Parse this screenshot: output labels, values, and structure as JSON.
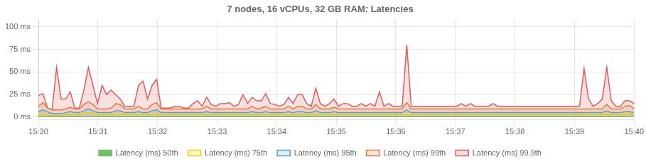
{
  "chart_data": {
    "type": "line",
    "title": "7 nodes, 16 vCPUs, 32 GB RAM: Latencies",
    "x": [
      0,
      1,
      2,
      3,
      4,
      5,
      6,
      7,
      8,
      9,
      10,
      11,
      12,
      13,
      14,
      15,
      16,
      17,
      18,
      19,
      20,
      21,
      22,
      23,
      24,
      25,
      26,
      27,
      28,
      29,
      30,
      31,
      32,
      33,
      34,
      35,
      36,
      37,
      38,
      39,
      40,
      41,
      42,
      43,
      44,
      45,
      46,
      47,
      48,
      49,
      50,
      51,
      52,
      53,
      54,
      55,
      56,
      57,
      58,
      59,
      60,
      61,
      62,
      63,
      64,
      65,
      66,
      67,
      68,
      69,
      70,
      71,
      72,
      73,
      74,
      75,
      76,
      77,
      78,
      79,
      80,
      81,
      82,
      83,
      84,
      85,
      86,
      87,
      88,
      89,
      90,
      91,
      92,
      93,
      94,
      95,
      96,
      97,
      98,
      99,
      100,
      101,
      102,
      103,
      104,
      105,
      106,
      107,
      108,
      109,
      110,
      111,
      112,
      113,
      114,
      115,
      116,
      117,
      118,
      119,
      120,
      121,
      122,
      123,
      124,
      125,
      126,
      127,
      128,
      129,
      130,
      131
    ],
    "xlim": [
      0,
      131
    ],
    "xticks": [
      {
        "value": 0,
        "label": "15:30"
      },
      {
        "value": 13.1,
        "label": "15:31"
      },
      {
        "value": 26.2,
        "label": "15:32"
      },
      {
        "value": 39.3,
        "label": "15:33"
      },
      {
        "value": 52.4,
        "label": "15:34"
      },
      {
        "value": 65.5,
        "label": "15:35"
      },
      {
        "value": 78.6,
        "label": "15:36"
      },
      {
        "value": 91.7,
        "label": "15:37"
      },
      {
        "value": 104.8,
        "label": "15:38"
      },
      {
        "value": 117.9,
        "label": "15:39"
      },
      {
        "value": 131,
        "label": "15:40"
      }
    ],
    "ylim": [
      -3,
      108
    ],
    "yticks": [
      {
        "value": 0,
        "label": "0 ms"
      },
      {
        "value": 25,
        "label": "25 ms"
      },
      {
        "value": 50,
        "label": "50 ms"
      },
      {
        "value": 75,
        "label": "75 ms"
      },
      {
        "value": 100,
        "label": "100 ms"
      }
    ],
    "grid": true,
    "legend": "bottom",
    "series": [
      {
        "name": "Latency (ms) 50th",
        "color": "#73bf69",
        "type": "line",
        "values": [
          1,
          1,
          1,
          1,
          1,
          1,
          1,
          1,
          1,
          1,
          1,
          1,
          1,
          1,
          1,
          1,
          1,
          1,
          1,
          1,
          1,
          1,
          1,
          1,
          1,
          1,
          1,
          1,
          1,
          1,
          1,
          1,
          1,
          1,
          1,
          1,
          1,
          1,
          1,
          1,
          1,
          1,
          1,
          1,
          1,
          1,
          1,
          1,
          1,
          1,
          1,
          1,
          1,
          1,
          1,
          1,
          1,
          1,
          1,
          1,
          1,
          1,
          1,
          1,
          1,
          1,
          1,
          1,
          1,
          1,
          1,
          1,
          1,
          1,
          1,
          1,
          1,
          1,
          1,
          1,
          1,
          1,
          1,
          1,
          1,
          1,
          1,
          1,
          1,
          1,
          1,
          1,
          1,
          1,
          1,
          1,
          1,
          1,
          1,
          1,
          1,
          1,
          1,
          1,
          1,
          1,
          1,
          1,
          1,
          1,
          1,
          1,
          1,
          1,
          1,
          1,
          1,
          1,
          1,
          1,
          1,
          1,
          1,
          1,
          1,
          1,
          1,
          1,
          1,
          1,
          1,
          1
        ]
      },
      {
        "name": "Latency (ms) 75th",
        "color": "#f2cc0c",
        "type": "area",
        "values": [
          3,
          4,
          3,
          2,
          2,
          2,
          3,
          3,
          3,
          3,
          4,
          5,
          4,
          3,
          3,
          3,
          3,
          4,
          4,
          3,
          3,
          3,
          3,
          3,
          3,
          4,
          4,
          3,
          3,
          3,
          3,
          3,
          3,
          3,
          3,
          3,
          3,
          3,
          3,
          3,
          3,
          3,
          3,
          3,
          3,
          3,
          3,
          3,
          3,
          3,
          3,
          3,
          3,
          3,
          3,
          3,
          3,
          3,
          3,
          3,
          3,
          4,
          3,
          3,
          3,
          3,
          3,
          3,
          3,
          3,
          3,
          3,
          3,
          3,
          3,
          3,
          3,
          3,
          3,
          3,
          3,
          4,
          3,
          3,
          3,
          3,
          3,
          3,
          3,
          3,
          3,
          3,
          3,
          3,
          3,
          3,
          3,
          3,
          3,
          3,
          3,
          3,
          3,
          3,
          3,
          3,
          3,
          3,
          3,
          3,
          3,
          3,
          3,
          3,
          3,
          3,
          3,
          3,
          3,
          3,
          3,
          3,
          3,
          3,
          3,
          4,
          3,
          3,
          3,
          4,
          4,
          3
        ]
      },
      {
        "name": "Latency (ms) 95th",
        "color": "#56a0d3",
        "type": "area",
        "values": [
          6,
          8,
          6,
          4,
          4,
          4,
          5,
          6,
          5,
          5,
          7,
          9,
          7,
          5,
          5,
          5,
          5,
          7,
          7,
          5,
          5,
          5,
          6,
          5,
          5,
          7,
          8,
          5,
          5,
          5,
          5,
          5,
          5,
          5,
          5,
          5,
          5,
          6,
          5,
          5,
          5,
          5,
          5,
          5,
          5,
          5,
          5,
          6,
          5,
          5,
          6,
          5,
          5,
          5,
          5,
          6,
          5,
          6,
          6,
          5,
          5,
          7,
          5,
          5,
          5,
          6,
          5,
          5,
          5,
          5,
          5,
          5,
          5,
          5,
          5,
          5,
          5,
          5,
          5,
          5,
          5,
          8,
          5,
          5,
          5,
          5,
          5,
          5,
          5,
          5,
          5,
          5,
          5,
          5,
          5,
          5,
          5,
          5,
          5,
          5,
          5,
          5,
          5,
          5,
          5,
          5,
          5,
          5,
          5,
          5,
          5,
          5,
          5,
          5,
          5,
          5,
          5,
          5,
          5,
          5,
          5,
          5,
          5,
          5,
          5,
          7,
          5,
          5,
          5,
          6,
          6,
          5
        ]
      },
      {
        "name": "Latency (ms) 99th",
        "color": "#e07d3c",
        "type": "area",
        "values": [
          12,
          16,
          10,
          8,
          8,
          8,
          9,
          11,
          9,
          9,
          14,
          17,
          14,
          9,
          9,
          9,
          10,
          15,
          14,
          9,
          9,
          9,
          12,
          9,
          9,
          14,
          16,
          9,
          9,
          9,
          9,
          9,
          9,
          9,
          9,
          9,
          9,
          12,
          9,
          9,
          9,
          9,
          9,
          9,
          9,
          9,
          9,
          12,
          9,
          10,
          12,
          9,
          9,
          9,
          9,
          12,
          9,
          12,
          12,
          9,
          9,
          14,
          9,
          9,
          9,
          11,
          9,
          9,
          9,
          9,
          9,
          9,
          9,
          9,
          9,
          9,
          9,
          9,
          9,
          9,
          9,
          16,
          9,
          9,
          9,
          9,
          9,
          9,
          9,
          9,
          9,
          9,
          9,
          9,
          9,
          9,
          9,
          9,
          9,
          9,
          9,
          9,
          9,
          9,
          9,
          9,
          9,
          9,
          9,
          9,
          9,
          9,
          9,
          9,
          9,
          9,
          9,
          9,
          9,
          9,
          9,
          9,
          9,
          9,
          9,
          14,
          9,
          9,
          9,
          12,
          13,
          9
        ]
      },
      {
        "name": "Latency (ms) 99.9th",
        "color": "#e05b5b",
        "type": "area",
        "values": [
          24,
          26,
          10,
          8,
          55,
          20,
          20,
          28,
          10,
          10,
          30,
          55,
          35,
          15,
          35,
          25,
          30,
          25,
          20,
          12,
          12,
          12,
          35,
          40,
          20,
          35,
          42,
          10,
          10,
          10,
          12,
          12,
          10,
          10,
          15,
          18,
          12,
          22,
          14,
          12,
          15,
          15,
          16,
          12,
          14,
          25,
          15,
          22,
          18,
          18,
          26,
          15,
          14,
          12,
          14,
          22,
          15,
          25,
          25,
          15,
          12,
          32,
          15,
          12,
          15,
          20,
          12,
          15,
          15,
          12,
          12,
          15,
          12,
          15,
          12,
          28,
          12,
          15,
          12,
          12,
          12,
          80,
          12,
          12,
          12,
          12,
          12,
          12,
          12,
          12,
          12,
          12,
          12,
          15,
          12,
          15,
          12,
          12,
          12,
          12,
          15,
          12,
          12,
          12,
          12,
          12,
          12,
          12,
          12,
          12,
          12,
          12,
          12,
          12,
          12,
          12,
          12,
          12,
          12,
          12,
          54,
          20,
          12,
          15,
          20,
          55,
          18,
          12,
          12,
          18,
          18,
          15
        ]
      }
    ]
  }
}
